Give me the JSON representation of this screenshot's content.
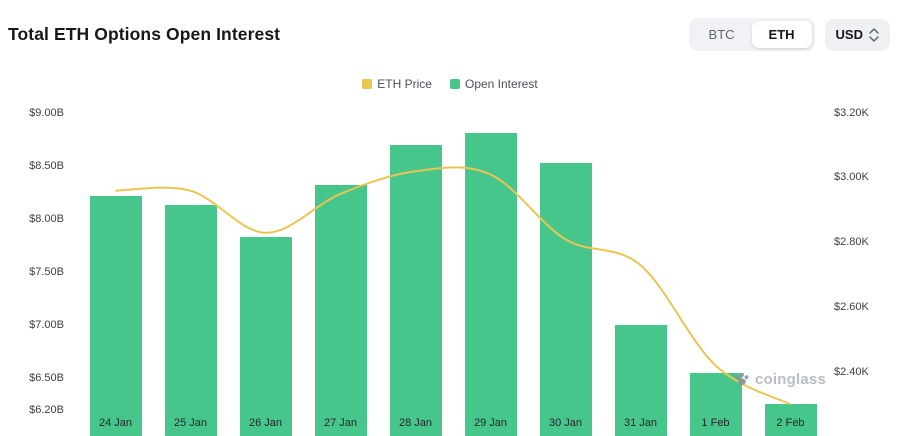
{
  "header": {
    "title": "Total ETH Options Open Interest",
    "coin_toggle": [
      {
        "label": "BTC",
        "active": false
      },
      {
        "label": "ETH",
        "active": true
      }
    ],
    "currency": "USD"
  },
  "watermark": "coinglass",
  "chart_data": {
    "type": "bar",
    "categories": [
      "24 Jan",
      "25 Jan",
      "26 Jan",
      "27 Jan",
      "28 Jan",
      "29 Jan",
      "30 Jan",
      "31 Jan",
      "1 Feb",
      "2 Feb"
    ],
    "series": [
      {
        "name": "ETH Price",
        "type": "line",
        "axis": "right",
        "color": "#ECC452",
        "values": [
          2.96,
          2.96,
          2.83,
          2.95,
          3.02,
          3.01,
          2.81,
          2.73,
          2.42,
          2.3
        ]
      },
      {
        "name": "Open Interest",
        "type": "bar",
        "axis": "left",
        "color": "#47C68C",
        "values": [
          8.22,
          8.13,
          7.83,
          8.32,
          8.7,
          8.81,
          8.53,
          7.0,
          6.55,
          6.26
        ]
      }
    ],
    "legend": [
      {
        "label": "ETH Price",
        "color": "#ECC452"
      },
      {
        "label": "Open Interest",
        "color": "#47C68C"
      }
    ],
    "left_axis": {
      "min": 6.2,
      "max": 9.0,
      "unit": "B",
      "ticks": [
        {
          "label": "$9.00B",
          "value": 9.0
        },
        {
          "label": "$8.50B",
          "value": 8.5
        },
        {
          "label": "$8.00B",
          "value": 8.0
        },
        {
          "label": "$7.50B",
          "value": 7.5
        },
        {
          "label": "$7.00B",
          "value": 7.0
        },
        {
          "label": "$6.50B",
          "value": 6.5
        },
        {
          "label": "$6.20B",
          "value": 6.2
        }
      ]
    },
    "right_axis": {
      "min": 2.4,
      "max": 3.2,
      "unit": "K",
      "ticks": [
        {
          "label": "$3.20K",
          "value": 3.2
        },
        {
          "label": "$3.00K",
          "value": 3.0
        },
        {
          "label": "$2.80K",
          "value": 2.8
        },
        {
          "label": "$2.60K",
          "value": 2.6
        },
        {
          "label": "$2.40K",
          "value": 2.4
        }
      ]
    },
    "grid": false,
    "legend_position": "top"
  }
}
